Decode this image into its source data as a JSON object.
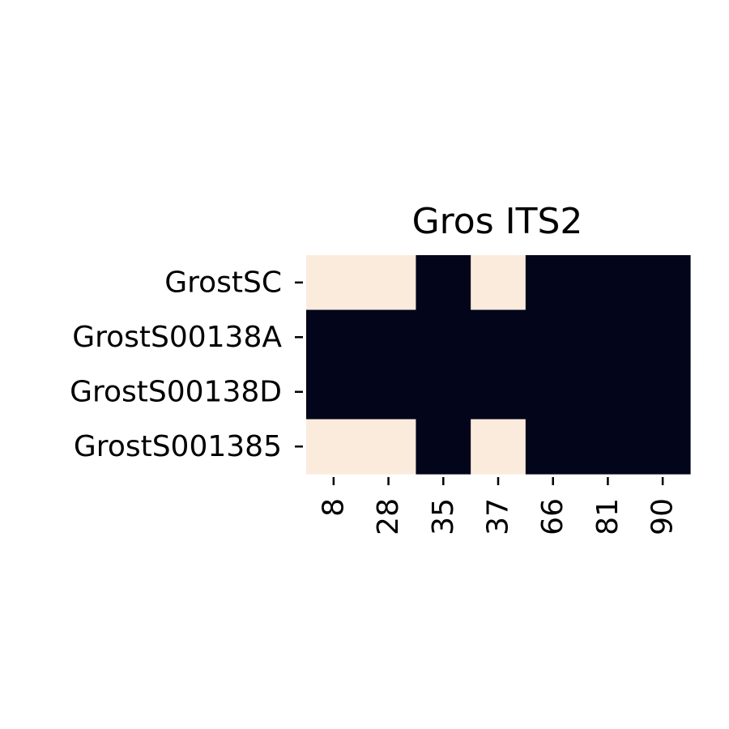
{
  "chart_data": {
    "type": "heatmap",
    "title": "Gros ITS2",
    "xlabel": "",
    "ylabel": "",
    "x_categories": [
      "8",
      "28",
      "35",
      "37",
      "66",
      "81",
      "90"
    ],
    "y_categories": [
      "GrostSC",
      "GrostS00138A",
      "GrostS00138D",
      "GrostS001385"
    ],
    "values": [
      [
        1,
        1,
        0,
        1,
        0,
        0,
        0
      ],
      [
        0,
        0,
        0,
        0,
        0,
        0,
        0
      ],
      [
        0,
        0,
        0,
        0,
        0,
        0,
        0
      ],
      [
        1,
        1,
        0,
        1,
        0,
        0,
        0
      ]
    ],
    "colors": {
      "high": "#FAEBDD",
      "low": "#03051A"
    },
    "colorbar": false,
    "grid": false
  }
}
